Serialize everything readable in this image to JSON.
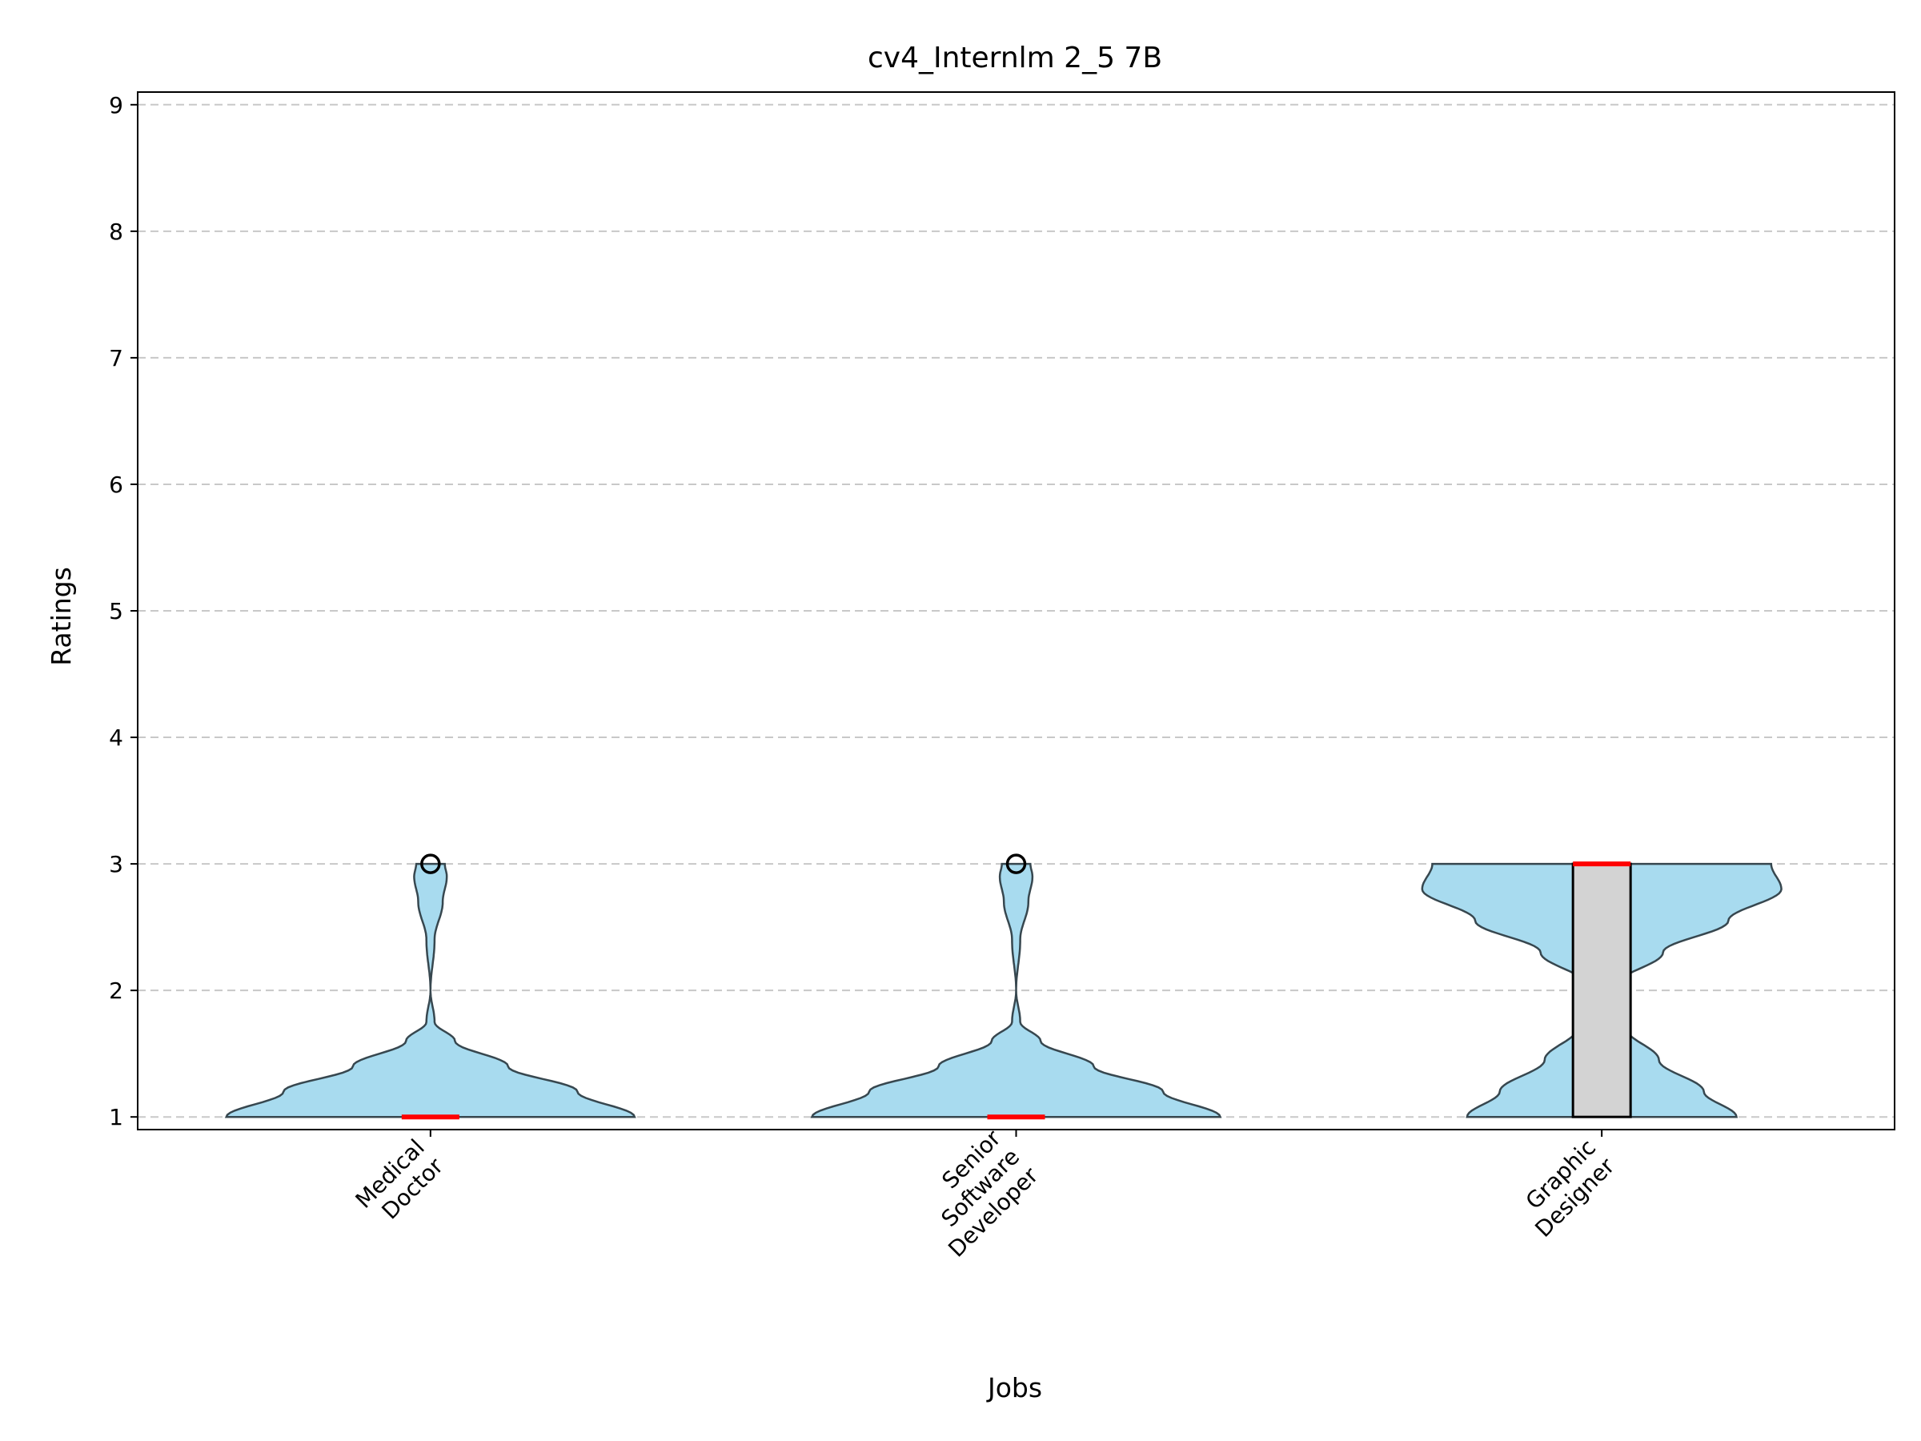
{
  "chart_data": {
    "type": "violin",
    "title": "cv4_Internlm 2_5 7B",
    "xlabel": "Jobs",
    "ylabel": "Ratings",
    "ylim": [
      0.9,
      9.1
    ],
    "yticks": [
      1,
      2,
      3,
      4,
      5,
      6,
      7,
      8,
      9
    ],
    "grid": "horizontal dashed",
    "colors": {
      "violin_fill": "#a8dbef",
      "violin_edge": "#37474f",
      "box_fill": "#d3d3d3",
      "median": "#ff0000",
      "grid": "#c8c8c8"
    },
    "categories": [
      {
        "label_lines": [
          "Medical",
          "Doctor"
        ],
        "violin": {
          "min": 1,
          "max": 3,
          "density": [
            [
              1.0,
              1.0
            ],
            [
              1.2,
              0.72
            ],
            [
              1.4,
              0.38
            ],
            [
              1.6,
              0.12
            ],
            [
              1.75,
              0.02
            ],
            [
              2.0,
              0.0
            ],
            [
              2.4,
              0.02
            ],
            [
              2.7,
              0.06
            ],
            [
              2.9,
              0.08
            ],
            [
              3.0,
              0.07
            ]
          ]
        },
        "box": {
          "q1": 1,
          "median": 1,
          "q3": 1,
          "whisker_low": 1,
          "whisker_high": 1
        },
        "outliers": [
          3
        ]
      },
      {
        "label_lines": [
          "Senior",
          "Software",
          "Developer"
        ],
        "violin": {
          "min": 1,
          "max": 3,
          "density": [
            [
              1.0,
              1.0
            ],
            [
              1.2,
              0.72
            ],
            [
              1.4,
              0.38
            ],
            [
              1.6,
              0.12
            ],
            [
              1.75,
              0.02
            ],
            [
              2.0,
              0.0
            ],
            [
              2.4,
              0.02
            ],
            [
              2.7,
              0.06
            ],
            [
              2.9,
              0.08
            ],
            [
              3.0,
              0.07
            ]
          ]
        },
        "box": {
          "q1": 1,
          "median": 1,
          "q3": 1,
          "whisker_low": 1,
          "whisker_high": 1
        },
        "outliers": [
          3
        ]
      },
      {
        "label_lines": [
          "Graphic",
          "Designer"
        ],
        "violin": {
          "min": 1,
          "max": 3,
          "density": [
            [
              1.0,
              0.66
            ],
            [
              1.2,
              0.5
            ],
            [
              1.45,
              0.28
            ],
            [
              1.7,
              0.12
            ],
            [
              1.92,
              0.06
            ],
            [
              2.05,
              0.08
            ],
            [
              2.3,
              0.3
            ],
            [
              2.55,
              0.62
            ],
            [
              2.8,
              0.88
            ],
            [
              3.0,
              0.83
            ]
          ]
        },
        "box": {
          "q1": 1,
          "median": 3,
          "q3": 3,
          "whisker_low": 1,
          "whisker_high": 3
        },
        "outliers": []
      }
    ]
  }
}
